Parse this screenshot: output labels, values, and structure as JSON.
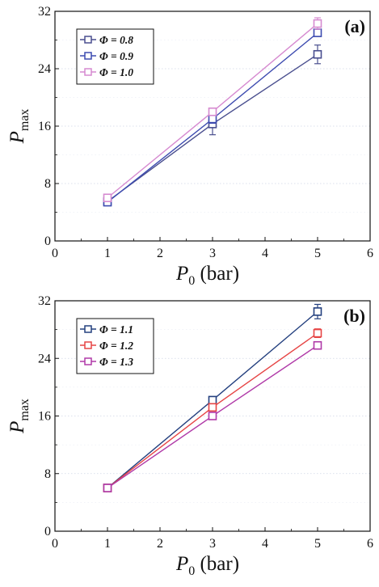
{
  "chart_data": [
    {
      "type": "line",
      "panel_label": "(a)",
      "title": "",
      "xlabel": "P",
      "xlabel_sub": "0",
      "xlabel_unit": " (bar)",
      "ylabel": "P",
      "ylabel_sub": "max",
      "xlim": [
        0,
        6
      ],
      "ylim": [
        0,
        32
      ],
      "xticks": [
        0,
        1,
        2,
        3,
        4,
        5,
        6
      ],
      "yticks": [
        0,
        8,
        16,
        24,
        32
      ],
      "grid": true,
      "legend_position": "top-left",
      "x": [
        1,
        3,
        5
      ],
      "series": [
        {
          "name": "Φ = 0.8",
          "color": "#4a4f8f",
          "values": [
            5.5,
            16.3,
            26.0
          ],
          "errors": [
            0.3,
            1.5,
            1.3
          ]
        },
        {
          "name": "Φ = 0.9",
          "color": "#3d4bb0",
          "values": [
            5.4,
            17.0,
            29.0
          ],
          "errors": [
            0.3,
            0.6,
            0.5
          ]
        },
        {
          "name": "Φ = 1.0",
          "color": "#d68ad0",
          "values": [
            6.0,
            18.0,
            30.3
          ],
          "errors": [
            0.3,
            0.5,
            0.8
          ]
        }
      ]
    },
    {
      "type": "line",
      "panel_label": "(b)",
      "title": "",
      "xlabel": "P",
      "xlabel_sub": "0",
      "xlabel_unit": " (bar)",
      "ylabel": "P",
      "ylabel_sub": "max",
      "xlim": [
        0,
        6
      ],
      "ylim": [
        0,
        32
      ],
      "xticks": [
        0,
        1,
        2,
        3,
        4,
        5,
        6
      ],
      "yticks": [
        0,
        8,
        16,
        24,
        32
      ],
      "grid": true,
      "legend_position": "top-left",
      "x": [
        1,
        3,
        5
      ],
      "series": [
        {
          "name": "Φ = 1.1",
          "color": "#24407f",
          "values": [
            6.0,
            18.2,
            30.5
          ],
          "errors": [
            0.3,
            0.4,
            1.0
          ]
        },
        {
          "name": "Φ = 1.2",
          "color": "#e64545",
          "values": [
            6.0,
            17.2,
            27.5
          ],
          "errors": [
            0.3,
            0.4,
            0.6
          ]
        },
        {
          "name": "Φ = 1.3",
          "color": "#b03aa8",
          "values": [
            6.0,
            16.0,
            25.8
          ],
          "errors": [
            0.3,
            0.3,
            0.4
          ]
        }
      ]
    }
  ]
}
